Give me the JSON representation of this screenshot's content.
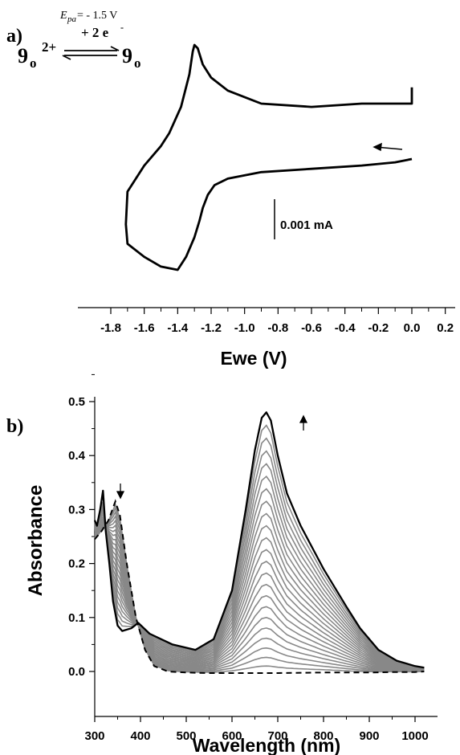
{
  "chart_data": [
    {
      "panel_label": "a)",
      "type": "line",
      "xlabel": "Ewe (V)",
      "ylabel": "",
      "xlim": [
        -1.85,
        0.22
      ],
      "x_ticks": [
        -1.8,
        -1.6,
        -1.4,
        -1.2,
        -1.0,
        -0.8,
        -0.6,
        -0.4,
        -0.2,
        0.0,
        0.2
      ],
      "x_tick_labels": [
        "-1.8",
        "-1.6",
        "-1.4",
        "-1.2",
        "-1.0",
        "-0.8",
        "-0.6",
        "-0.4",
        "-0.2",
        "0.0",
        "0.2"
      ],
      "current_units_mA": "relative (scale bar)",
      "scale_bar_label": "0.001 mA",
      "scale_bar_mA": 0.001,
      "annotation": {
        "epa_symbol": "E",
        "epa_subscript": "pa",
        "epa_value": "= - 1.5 V",
        "electrons": "+ 2 e",
        "electrons_sup": "-",
        "reactant": "9",
        "reactant_sub": "o",
        "reactant_sup": "2+",
        "product": "9",
        "product_sub": "o"
      },
      "sweep_direction": "cathodic (arrow pointing left at 0 V side)",
      "series": [
        {
          "name": "",
          "x": [
            0.0,
            -0.1,
            -0.3,
            -0.6,
            -0.9,
            -1.1,
            -1.18,
            -1.22,
            -1.25,
            -1.27,
            -1.3,
            -1.35,
            -1.4,
            -1.5,
            -1.6,
            -1.7,
            -1.71,
            -1.7,
            -1.6,
            -1.5,
            -1.45,
            -1.38,
            -1.33,
            -1.31,
            -1.3,
            -1.28,
            -1.25,
            -1.2,
            -1.1,
            -0.9,
            -0.6,
            -0.3,
            0.0,
            0.0
          ],
          "y": [
            0.0032,
            0.0031,
            0.003,
            0.0029,
            0.0028,
            0.0026,
            0.0024,
            0.0021,
            0.0017,
            0.0013,
            0.0008,
            0.0002,
            -0.0002,
            -0.0001,
            0.0002,
            0.0006,
            0.0012,
            0.0022,
            0.003,
            0.0036,
            0.004,
            0.0048,
            0.0058,
            0.0065,
            0.0067,
            0.0066,
            0.0061,
            0.0057,
            0.0053,
            0.0049,
            0.0048,
            0.0049,
            0.0049,
            0.0054
          ]
        }
      ]
    },
    {
      "panel_label": "b)",
      "type": "line",
      "xlabel": "Wavelength (nm)",
      "ylabel": "Absorbance",
      "xlim": [
        295,
        1030
      ],
      "ylim": [
        -0.045,
        0.55
      ],
      "x_ticks": [
        300,
        400,
        500,
        600,
        700,
        800,
        900,
        1000
      ],
      "y_ticks": [
        0.0,
        0.1,
        0.2,
        0.3,
        0.4,
        0.5
      ],
      "y_tick_labels": [
        "0.0",
        "0.1",
        "0.2",
        "0.3",
        "0.4",
        "0.5"
      ],
      "series": [
        {
          "name": "",
          "style": "dashed black",
          "x": [
            300,
            315,
            330,
            345,
            355,
            370,
            390,
            410,
            430,
            460,
            500,
            550,
            600,
            700,
            800,
            900,
            960,
            1000,
            1020
          ],
          "y": [
            0.245,
            0.26,
            0.28,
            0.315,
            0.29,
            0.2,
            0.1,
            0.04,
            0.01,
            0.0,
            -0.002,
            -0.003,
            -0.003,
            -0.003,
            -0.002,
            -0.002,
            -0.001,
            -0.001,
            0.0
          ]
        },
        {
          "name": "",
          "style": "solid black",
          "x": [
            300,
            305,
            312,
            318,
            324,
            332,
            340,
            350,
            360,
            380,
            395,
            420,
            470,
            520,
            560,
            600,
            630,
            650,
            665,
            675,
            685,
            700,
            720,
            750,
            800,
            850,
            880,
            920,
            960,
            1000,
            1020
          ],
          "y": [
            0.28,
            0.27,
            0.3,
            0.335,
            0.26,
            0.2,
            0.13,
            0.085,
            0.075,
            0.08,
            0.09,
            0.07,
            0.05,
            0.04,
            0.06,
            0.15,
            0.3,
            0.41,
            0.47,
            0.48,
            0.465,
            0.4,
            0.33,
            0.27,
            0.19,
            0.12,
            0.08,
            0.04,
            0.02,
            0.01,
            0.007
          ]
        }
      ],
      "intermediate_traces": {
        "color": "#888888",
        "count": 22,
        "note": "grey spectra growing from dashed to solid trace"
      }
    }
  ]
}
